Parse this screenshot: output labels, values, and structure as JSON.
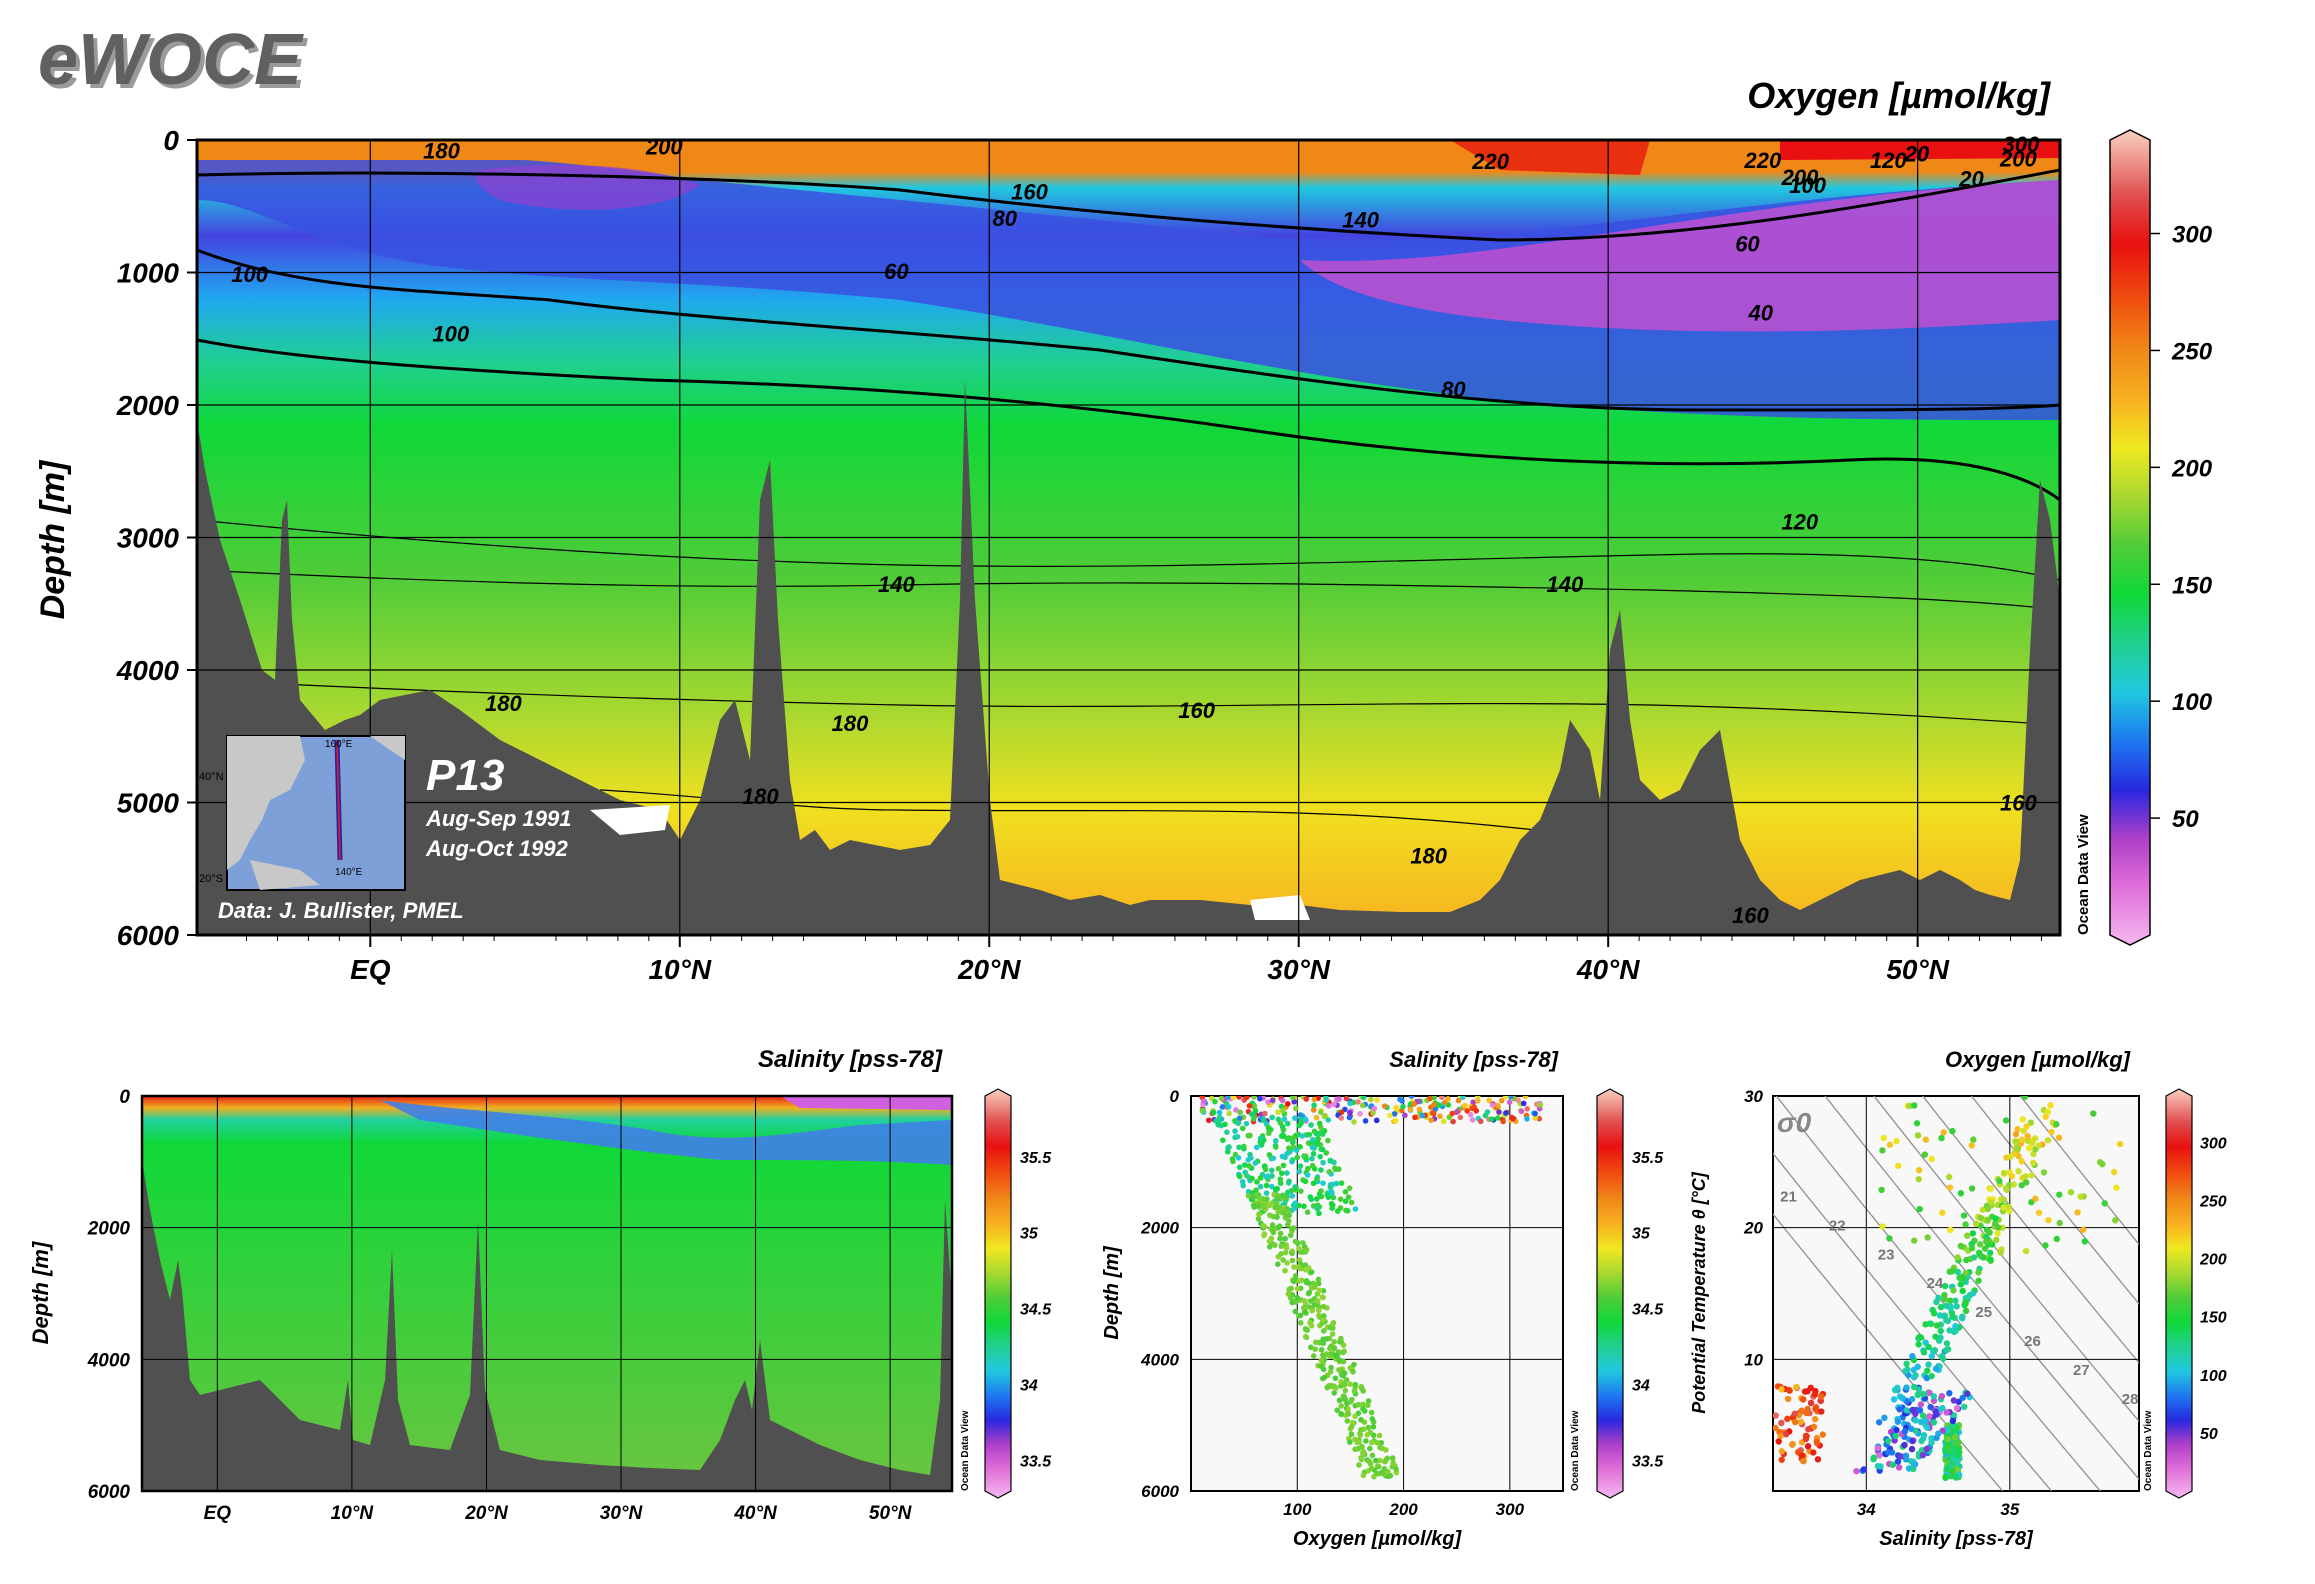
{
  "brand": {
    "logo": "eWOCE"
  },
  "section": {
    "cruise": "P13",
    "dates": [
      "Aug-Sep 1991",
      "Aug-Oct 1992"
    ],
    "credit": "Data: J. Bullister, PMEL",
    "inset_labels": [
      "40°N",
      "20°S",
      "160°E",
      "140°E"
    ]
  },
  "odv_label": "Ocean Data View",
  "colors": {
    "land": "#505050",
    "seafloor": "#505050",
    "frame": "#000000"
  },
  "chart_data": [
    {
      "type": "heatmap",
      "name": "oxygen-section",
      "title": "Oxygen [µmol/kg]",
      "ylabel": "Depth [m]",
      "xlabel": "",
      "x_ticks": [
        "EQ",
        "10°N",
        "20°N",
        "30°N",
        "40°N",
        "50°N"
      ],
      "x_tick_values": [
        0,
        10,
        20,
        30,
        40,
        50
      ],
      "xlim": [
        -5.6,
        54.6
      ],
      "y_ticks": [
        "0",
        "1000",
        "2000",
        "3000",
        "4000",
        "5000",
        "6000"
      ],
      "ylim": [
        0,
        6000
      ],
      "grid": true,
      "contour_labels": [
        {
          "label": "180",
          "lat": 2.3,
          "depth": 80
        },
        {
          "label": "200",
          "lat": 9.5,
          "depth": 50
        },
        {
          "label": "160",
          "lat": 21.3,
          "depth": 390
        },
        {
          "label": "80",
          "lat": 20.5,
          "depth": 590
        },
        {
          "label": "60",
          "lat": 17.0,
          "depth": 990
        },
        {
          "label": "140",
          "lat": 32.0,
          "depth": 600
        },
        {
          "label": "220",
          "lat": 36.2,
          "depth": 160
        },
        {
          "label": "220",
          "lat": 45.0,
          "depth": 150
        },
        {
          "label": "200",
          "lat": 46.2,
          "depth": 280
        },
        {
          "label": "60",
          "lat": 44.5,
          "depth": 780
        },
        {
          "label": "100",
          "lat": 56.3,
          "depth": 340
        },
        {
          "label": "120",
          "lat": 59.4,
          "depth": 150
        },
        {
          "label": "20",
          "lat": 60.5,
          "depth": 100
        },
        {
          "label": "20",
          "lat": 62.6,
          "depth": 290
        },
        {
          "label": "300",
          "lat": 64.5,
          "depth": 30
        },
        {
          "label": "200",
          "lat": 64.4,
          "depth": 140
        },
        {
          "label": "100",
          "lat": -3.9,
          "depth": 1010
        },
        {
          "label": "100",
          "lat": 2.6,
          "depth": 1460
        },
        {
          "label": "40",
          "lat": 54.5,
          "depth": 1300
        },
        {
          "label": "80",
          "lat": 35.0,
          "depth": 1880
        },
        {
          "label": "120",
          "lat": 56.0,
          "depth": 2880
        },
        {
          "label": "140",
          "lat": 17.0,
          "depth": 3350
        },
        {
          "label": "140",
          "lat": 38.6,
          "depth": 3350
        },
        {
          "label": "160",
          "lat": 26.7,
          "depth": 4300
        },
        {
          "label": "180",
          "lat": 4.3,
          "depth": 4250
        },
        {
          "label": "180",
          "lat": 15.5,
          "depth": 4400
        },
        {
          "label": "180",
          "lat": 12.6,
          "depth": 4950
        },
        {
          "label": "180",
          "lat": 34.2,
          "depth": 5400
        },
        {
          "label": "160",
          "lat": 54.1,
          "depth": 5850
        },
        {
          "label": "160",
          "lat": 64.4,
          "depth": 5000
        }
      ],
      "colorbar": {
        "ticks": [
          "50",
          "100",
          "150",
          "200",
          "250",
          "300"
        ],
        "range": [
          0,
          340
        ]
      }
    },
    {
      "type": "heatmap",
      "name": "salinity-section",
      "title": "Salinity [pss-78]",
      "ylabel": "Depth [m]",
      "x_ticks": [
        "EQ",
        "10°N",
        "20°N",
        "30°N",
        "40°N",
        "50°N"
      ],
      "y_ticks": [
        "0",
        "2000",
        "4000",
        "6000"
      ],
      "ylim": [
        0,
        6000
      ],
      "grid": true,
      "colorbar": {
        "ticks": [
          "33.5",
          "34",
          "34.5",
          "35",
          "35.5"
        ],
        "range": [
          33.3,
          35.9
        ]
      }
    },
    {
      "type": "scatter",
      "name": "oxygen-depth-profile",
      "title": "Salinity [pss-78]",
      "xlabel": "Oxygen [µmol/kg]",
      "ylabel": "Depth [m]",
      "x_ticks": [
        "100",
        "200",
        "300"
      ],
      "xlim": [
        0,
        350
      ],
      "y_ticks": [
        "0",
        "2000",
        "4000",
        "6000"
      ],
      "ylim": [
        6000,
        0
      ],
      "color_by": "salinity",
      "colorbar": {
        "ticks": [
          "33.5",
          "34",
          "34.5",
          "35",
          "35.5"
        ],
        "range": [
          33.3,
          35.9
        ]
      }
    },
    {
      "type": "scatter",
      "name": "ts-diagram",
      "title": "Oxygen [µmol/kg]",
      "xlabel": "Salinity [pss-78]",
      "ylabel": "Potential Temperature θ [°C]",
      "x_ticks": [
        "34",
        "35"
      ],
      "xlim": [
        33.35,
        35.9
      ],
      "y_ticks": [
        "10",
        "20",
        "30"
      ],
      "ylim": [
        0,
        30
      ],
      "density_symbol": "σ0",
      "isopycnal_labels": [
        "21",
        "22",
        "23",
        "24",
        "25",
        "26",
        "27",
        "28"
      ],
      "color_by": "oxygen",
      "colorbar": {
        "ticks": [
          "50",
          "100",
          "150",
          "200",
          "250",
          "300"
        ],
        "range": [
          0,
          340
        ]
      }
    }
  ]
}
